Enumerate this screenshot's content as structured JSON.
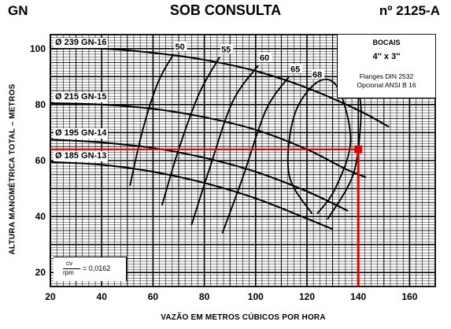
{
  "header": {
    "brand": "GN",
    "subtitle": "SOB CONSULTA",
    "code": "nº 2125-A"
  },
  "spec_box": {
    "title": "BOCAIS",
    "size": "4'' x 3''",
    "note_line1": "Flanges DIN 2532",
    "note_line2": "Opcional ANSI B 16"
  },
  "ratio_note": {
    "numerator": "cv",
    "denominator": "rpm",
    "value": "= 0,0162"
  },
  "colors": {
    "grid": "#000000",
    "curve": "#000000",
    "highlight": "#e00000"
  },
  "chart_data": {
    "type": "line",
    "xlabel": "VAZÃO EM METROS CÚBICOS POR HORA",
    "ylabel": "ALTURA MANOMÉTRICA TOTAL – METROS",
    "xlim": [
      20,
      170
    ],
    "ylim": [
      15,
      105
    ],
    "x_ticks": [
      20,
      40,
      60,
      80,
      100,
      120,
      140,
      160
    ],
    "y_ticks": [
      20,
      40,
      60,
      80,
      100
    ],
    "grid": true,
    "series": [
      {
        "name": "Ø 239 GN-16",
        "x": [
          20,
          40,
          60,
          80,
          100,
          120,
          140,
          152
        ],
        "y": [
          100,
          100,
          98.5,
          96,
          92,
          86,
          78,
          72
        ]
      },
      {
        "name": "Ø 215 GN-15",
        "x": [
          20,
          40,
          60,
          80,
          100,
          120,
          135,
          143
        ],
        "y": [
          80.5,
          80,
          78.5,
          75.5,
          71,
          64,
          57,
          54
        ]
      },
      {
        "name": "Ø 195 GN-14",
        "x": [
          20,
          40,
          60,
          80,
          100,
          120,
          136
        ],
        "y": [
          67.5,
          66.5,
          64.5,
          61,
          56,
          49,
          42
        ]
      },
      {
        "name": "Ø 185 GN-13",
        "x": [
          20,
          40,
          60,
          80,
          100,
          118,
          130
        ],
        "y": [
          59.5,
          58.5,
          56,
          52,
          46.5,
          40,
          35.5
        ]
      }
    ],
    "efficiency_curves": [
      {
        "label": "50",
        "x": [
          51,
          56,
          62,
          68
        ],
        "y": [
          51,
          71,
          88,
          98
        ]
      },
      {
        "label": "55",
        "x": [
          63.5,
          70,
          78,
          86
        ],
        "y": [
          44,
          64,
          84,
          97
        ]
      },
      {
        "label": "60",
        "x": [
          75,
          82,
          91,
          101
        ],
        "y": [
          37,
          57,
          81,
          94
        ]
      },
      {
        "label": "65",
        "x": [
          87,
          95,
          104,
          113
        ],
        "y": [
          34,
          54,
          78,
          90
        ]
      },
      {
        "label": "68",
        "x": [
          122,
          113,
          115,
          124,
          132,
          137,
          131,
          124
        ],
        "y": [
          41,
          55,
          76,
          88,
          86,
          67,
          50,
          41
        ]
      },
      {
        "label": "65",
        "x": [
          128,
          138,
          141,
          140,
          137
        ],
        "y": [
          39,
          55,
          75,
          85,
          88
        ]
      }
    ],
    "operating_point": {
      "x": 140,
      "y": 64
    }
  }
}
